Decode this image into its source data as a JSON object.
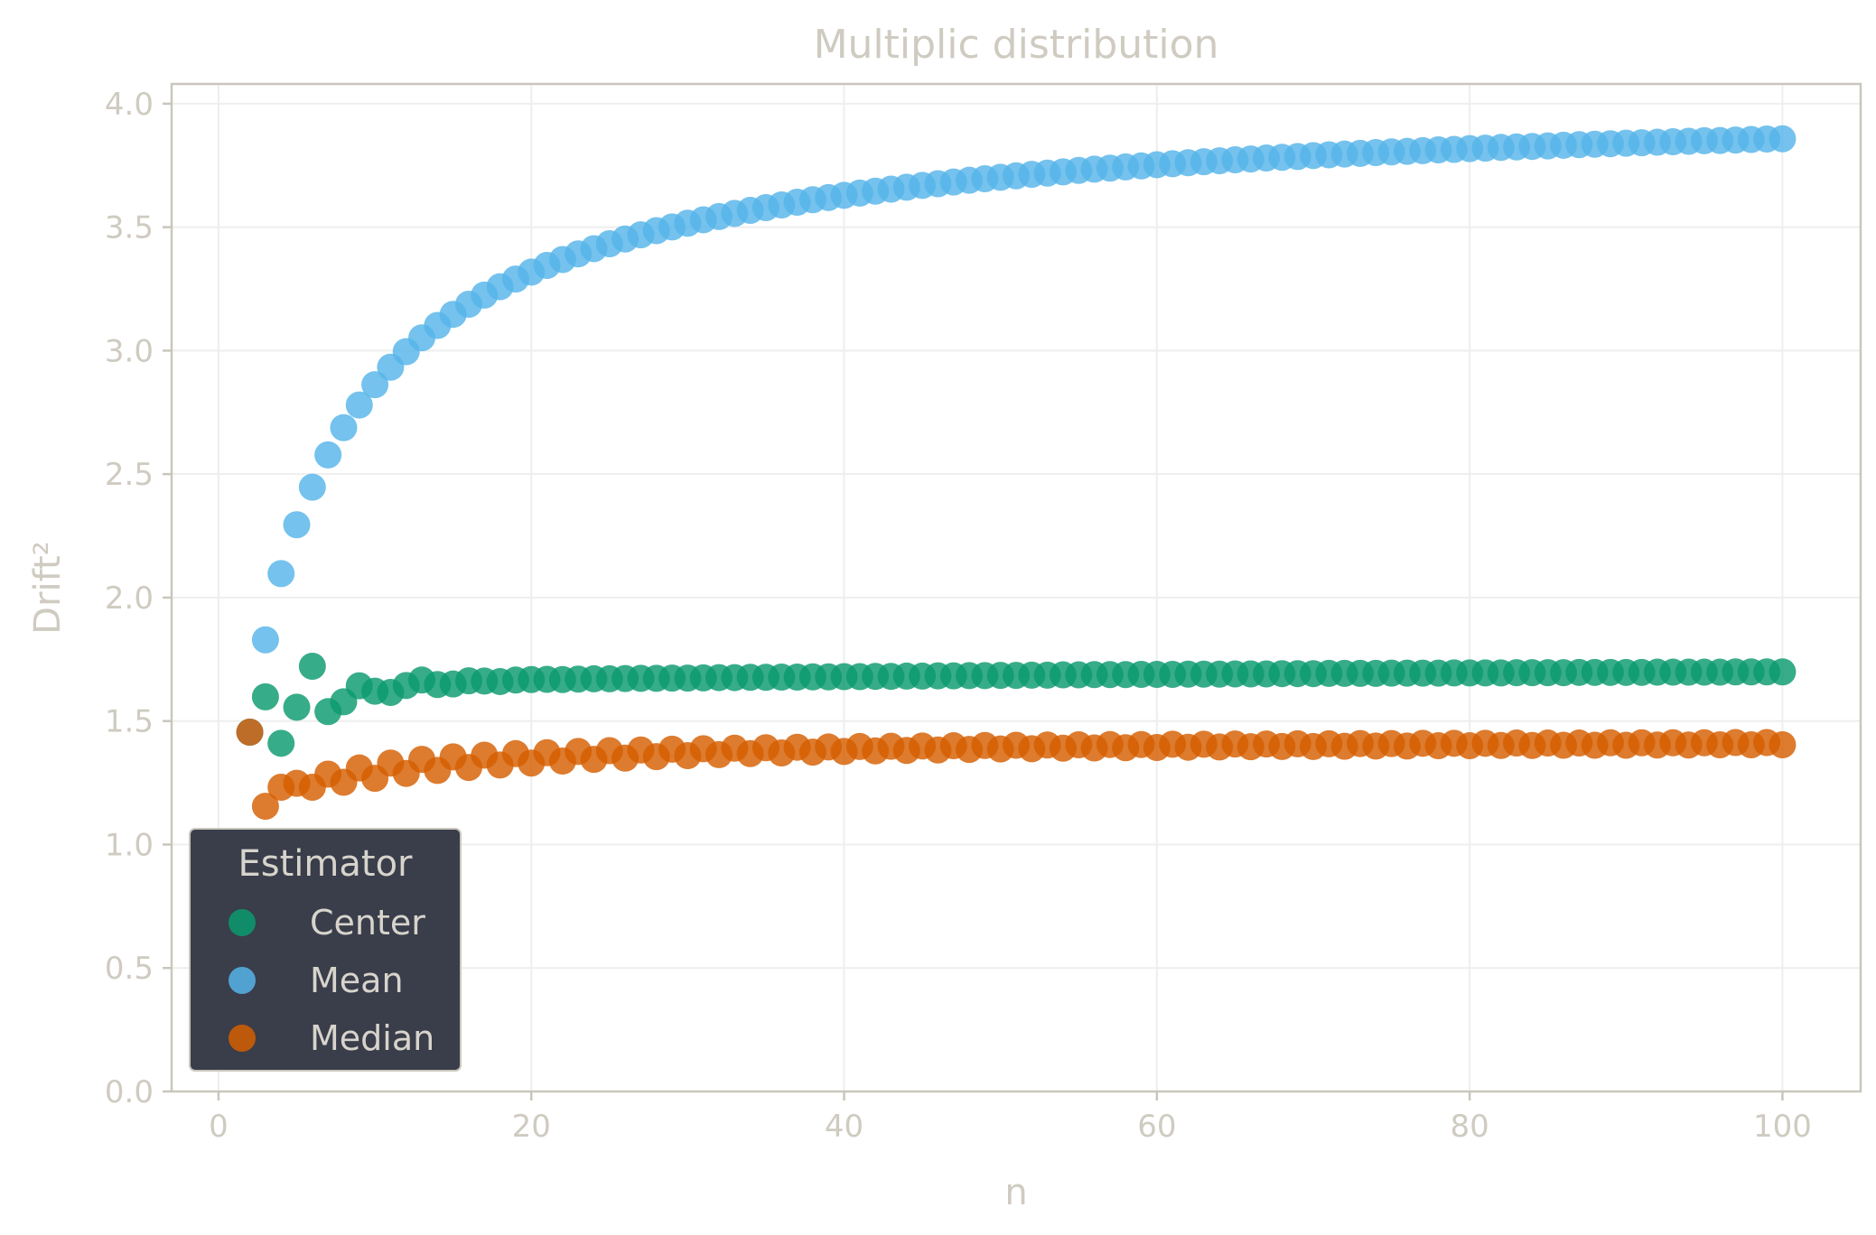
{
  "chart_data": {
    "type": "scatter",
    "title": "Multiplic distribution",
    "xlabel": "n",
    "ylabel": "Drift²",
    "xlim": [
      -3,
      105
    ],
    "ylim": [
      0,
      4.08
    ],
    "xticks": [
      0,
      20,
      40,
      60,
      80,
      100
    ],
    "xtick_labels": [
      "0",
      "20",
      "40",
      "60",
      "80",
      "100"
    ],
    "yticks": [
      0.0,
      0.5,
      1.0,
      1.5,
      2.0,
      2.5,
      3.0,
      3.5,
      4.0
    ],
    "ytick_labels": [
      "0.0",
      "0.5",
      "1.0",
      "1.5",
      "2.0",
      "2.5",
      "3.0",
      "3.5",
      "4.0"
    ],
    "grid": true,
    "legend": {
      "title": "Estimator",
      "position": "lower-left"
    },
    "colors": {
      "axes_frame": "#c9c7bc",
      "grid": "#eeeeee",
      "text": "#cfcbc1",
      "legend_bg": "#3a3d4a"
    },
    "series": [
      {
        "name": "Center",
        "color": "#0b9a6e",
        "x": [
          2,
          3,
          4,
          5,
          6,
          7,
          8,
          9,
          10,
          11,
          12,
          13,
          14,
          15,
          16,
          17,
          18,
          19,
          20,
          21,
          22,
          23,
          24,
          25,
          26,
          27,
          28,
          29,
          30,
          31,
          32,
          33,
          34,
          35,
          36,
          37,
          38,
          39,
          40,
          41,
          42,
          43,
          44,
          45,
          46,
          47,
          48,
          49,
          50,
          51,
          52,
          53,
          54,
          55,
          56,
          57,
          58,
          59,
          60,
          61,
          62,
          63,
          64,
          65,
          66,
          67,
          68,
          69,
          70,
          71,
          72,
          73,
          74,
          75,
          76,
          77,
          78,
          79,
          80,
          81,
          82,
          83,
          84,
          85,
          86,
          87,
          88,
          89,
          90,
          91,
          92,
          93,
          94,
          95,
          96,
          97,
          98,
          99,
          100
        ],
        "y": [
          1.455,
          1.598,
          1.41,
          1.556,
          1.722,
          1.538,
          1.578,
          1.643,
          1.621,
          1.616,
          1.644,
          1.666,
          1.648,
          1.65,
          1.663,
          1.662,
          1.66,
          1.666,
          1.668,
          1.669,
          1.668,
          1.67,
          1.671,
          1.671,
          1.672,
          1.673,
          1.673,
          1.674,
          1.674,
          1.675,
          1.676,
          1.676,
          1.677,
          1.677,
          1.678,
          1.678,
          1.679,
          1.679,
          1.68,
          1.68,
          1.681,
          1.681,
          1.682,
          1.682,
          1.683,
          1.683,
          1.684,
          1.684,
          1.685,
          1.685,
          1.686,
          1.686,
          1.687,
          1.687,
          1.688,
          1.688,
          1.688,
          1.689,
          1.689,
          1.689,
          1.69,
          1.69,
          1.69,
          1.691,
          1.691,
          1.691,
          1.692,
          1.692,
          1.692,
          1.693,
          1.693,
          1.693,
          1.693,
          1.694,
          1.694,
          1.694,
          1.694,
          1.695,
          1.695,
          1.695,
          1.695,
          1.696,
          1.696,
          1.696,
          1.696,
          1.697,
          1.697,
          1.697,
          1.697,
          1.697,
          1.698,
          1.698,
          1.698,
          1.698,
          1.698,
          1.699,
          1.699,
          1.699,
          1.699
        ]
      },
      {
        "name": "Mean",
        "color": "#56b4e9",
        "x": [
          2,
          3,
          4,
          5,
          6,
          7,
          8,
          9,
          10,
          11,
          12,
          13,
          14,
          15,
          16,
          17,
          18,
          19,
          20,
          21,
          22,
          23,
          24,
          25,
          26,
          27,
          28,
          29,
          30,
          31,
          32,
          33,
          34,
          35,
          36,
          37,
          38,
          39,
          40,
          41,
          42,
          43,
          44,
          45,
          46,
          47,
          48,
          49,
          50,
          51,
          52,
          53,
          54,
          55,
          56,
          57,
          58,
          59,
          60,
          61,
          62,
          63,
          64,
          65,
          66,
          67,
          68,
          69,
          70,
          71,
          72,
          73,
          74,
          75,
          76,
          77,
          78,
          79,
          80,
          81,
          82,
          83,
          84,
          85,
          86,
          87,
          88,
          89,
          90,
          91,
          92,
          93,
          94,
          95,
          96,
          97,
          98,
          99,
          100
        ],
        "y": [
          1.455,
          1.829,
          2.097,
          2.295,
          2.447,
          2.578,
          2.688,
          2.78,
          2.862,
          2.933,
          2.996,
          3.052,
          3.102,
          3.147,
          3.188,
          3.225,
          3.259,
          3.29,
          3.318,
          3.345,
          3.369,
          3.392,
          3.413,
          3.433,
          3.452,
          3.469,
          3.486,
          3.501,
          3.516,
          3.53,
          3.543,
          3.556,
          3.568,
          3.579,
          3.59,
          3.601,
          3.611,
          3.62,
          3.629,
          3.638,
          3.646,
          3.654,
          3.662,
          3.669,
          3.676,
          3.683,
          3.69,
          3.696,
          3.702,
          3.708,
          3.714,
          3.719,
          3.724,
          3.73,
          3.735,
          3.739,
          3.744,
          3.748,
          3.753,
          3.757,
          3.761,
          3.765,
          3.769,
          3.773,
          3.776,
          3.78,
          3.783,
          3.786,
          3.79,
          3.793,
          3.796,
          3.799,
          3.802,
          3.805,
          3.807,
          3.81,
          3.813,
          3.815,
          3.818,
          3.82,
          3.823,
          3.825,
          3.827,
          3.829,
          3.832,
          3.834,
          3.836,
          3.838,
          3.84,
          3.842,
          3.844,
          3.846,
          3.848,
          3.85,
          3.851,
          3.853,
          3.855,
          3.857,
          3.858
        ]
      },
      {
        "name": "Median",
        "color": "#d55e00",
        "x": [
          2,
          3,
          4,
          5,
          6,
          7,
          8,
          9,
          10,
          11,
          12,
          13,
          14,
          15,
          16,
          17,
          18,
          19,
          20,
          21,
          22,
          23,
          24,
          25,
          26,
          27,
          28,
          29,
          30,
          31,
          32,
          33,
          34,
          35,
          36,
          37,
          38,
          39,
          40,
          41,
          42,
          43,
          44,
          45,
          46,
          47,
          48,
          49,
          50,
          51,
          52,
          53,
          54,
          55,
          56,
          57,
          58,
          59,
          60,
          61,
          62,
          63,
          64,
          65,
          66,
          67,
          68,
          69,
          70,
          71,
          72,
          73,
          74,
          75,
          76,
          77,
          78,
          79,
          80,
          81,
          82,
          83,
          84,
          85,
          86,
          87,
          88,
          89,
          90,
          91,
          92,
          93,
          94,
          95,
          96,
          97,
          98,
          99,
          100
        ],
        "y": [
          1.455,
          1.155,
          1.232,
          1.248,
          1.232,
          1.285,
          1.252,
          1.31,
          1.268,
          1.33,
          1.288,
          1.345,
          1.3,
          1.355,
          1.312,
          1.362,
          1.322,
          1.368,
          1.33,
          1.372,
          1.338,
          1.377,
          1.345,
          1.38,
          1.35,
          1.383,
          1.356,
          1.386,
          1.36,
          1.388,
          1.364,
          1.39,
          1.368,
          1.392,
          1.371,
          1.394,
          1.374,
          1.395,
          1.377,
          1.397,
          1.379,
          1.398,
          1.381,
          1.399,
          1.383,
          1.4,
          1.385,
          1.401,
          1.387,
          1.402,
          1.388,
          1.403,
          1.39,
          1.404,
          1.391,
          1.405,
          1.392,
          1.405,
          1.393,
          1.406,
          1.394,
          1.406,
          1.395,
          1.407,
          1.396,
          1.407,
          1.397,
          1.408,
          1.397,
          1.408,
          1.398,
          1.409,
          1.399,
          1.409,
          1.399,
          1.41,
          1.4,
          1.41,
          1.4,
          1.41,
          1.401,
          1.411,
          1.401,
          1.411,
          1.402,
          1.411,
          1.402,
          1.412,
          1.402,
          1.412,
          1.403,
          1.412,
          1.403,
          1.412,
          1.404,
          1.413,
          1.404,
          1.413,
          1.404
        ]
      }
    ]
  }
}
